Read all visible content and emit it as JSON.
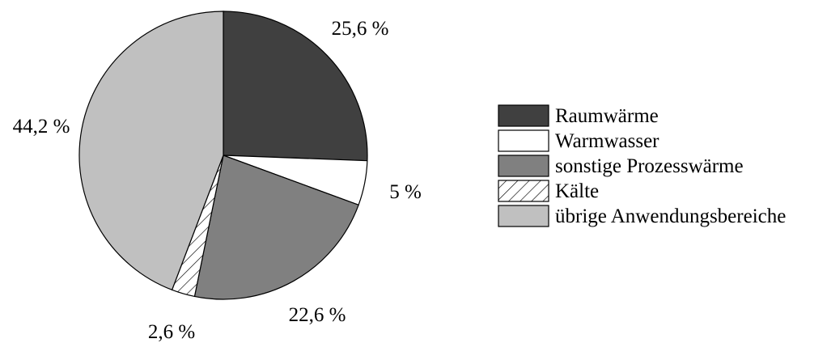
{
  "chart_data": {
    "type": "pie",
    "title": "",
    "slices": [
      {
        "label": "Raumwärme",
        "value": 25.6,
        "value_label": "25,6 %",
        "color": "#404040",
        "pattern": "solid"
      },
      {
        "label": "Warmwasser",
        "value": 5,
        "value_label": "5 %",
        "color": "#ffffff",
        "pattern": "solid"
      },
      {
        "label": "sonstige Prozesswärme",
        "value": 22.6,
        "value_label": "22,6 %",
        "color": "#808080",
        "pattern": "solid"
      },
      {
        "label": "Kälte",
        "value": 2.6,
        "value_label": "2,6 %",
        "color": "#ffffff",
        "pattern": "hatch"
      },
      {
        "label": "übrige Anwendungsbereiche",
        "value": 44.2,
        "value_label": "44,2 %",
        "color": "#c0c0c0",
        "pattern": "solid"
      }
    ],
    "legend_position": "right",
    "start_angle": "12 o'clock",
    "direction": "clockwise"
  }
}
